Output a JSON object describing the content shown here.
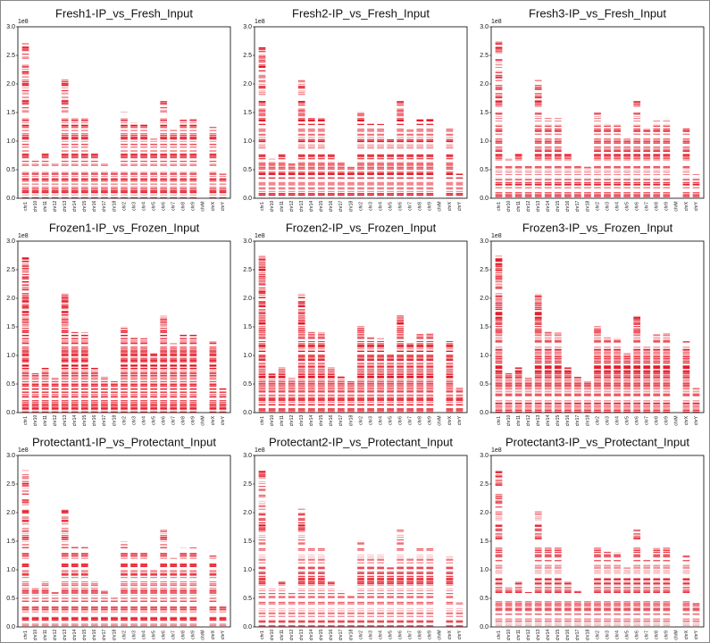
{
  "chart_data": [
    {
      "type": "bar",
      "title": "Fresh1-IP_vs_Fresh_Input",
      "offset_label": "1e8",
      "color": "#e3101e",
      "categories": [
        "chr1",
        "chr10",
        "chr11",
        "chr12",
        "chr13",
        "chr14",
        "chr15",
        "chr16",
        "chr17",
        "chr18",
        "chr2",
        "chr3",
        "chr4",
        "chr5",
        "chr6",
        "chr7",
        "chr8",
        "chr9",
        "chrM",
        "chrX",
        "chrY"
      ],
      "values": [
        2.74,
        0.69,
        0.79,
        0.61,
        2.08,
        1.41,
        1.4,
        0.79,
        0.63,
        0.55,
        1.51,
        1.32,
        1.3,
        1.04,
        1.7,
        1.21,
        1.38,
        1.39,
        0.00017,
        1.25,
        0.43
      ],
      "ylim": [
        0,
        3
      ],
      "yticks": [
        {
          "value": 0,
          "label": "0.0"
        },
        0.5,
        {
          "value": 1,
          "label": "1.0"
        },
        1.5,
        {
          "value": 2,
          "label": "2.0"
        },
        2.5,
        {
          "value": 3,
          "label": "3.0"
        }
      ]
    },
    {
      "type": "bar",
      "title": "Fresh2-IP_vs_Fresh_Input",
      "offset_label": "1e8",
      "color": "#e3101e",
      "categories": [
        "chr1",
        "chr10",
        "chr11",
        "chr12",
        "chr13",
        "chr14",
        "chr15",
        "chr16",
        "chr17",
        "chr18",
        "chr2",
        "chr3",
        "chr4",
        "chr5",
        "chr6",
        "chr7",
        "chr8",
        "chr9",
        "chrM",
        "chrX",
        "chrY"
      ],
      "values": [
        2.74,
        0.69,
        0.79,
        0.61,
        2.08,
        1.41,
        1.4,
        0.79,
        0.63,
        0.55,
        1.51,
        1.32,
        1.3,
        1.04,
        1.7,
        1.21,
        1.38,
        1.39,
        0.00017,
        1.25,
        0.43
      ],
      "ylim": [
        0,
        3
      ],
      "yticks": [
        {
          "value": 0,
          "label": "0.0"
        },
        0.5,
        {
          "value": 1,
          "label": "1.0"
        },
        1.5,
        {
          "value": 2,
          "label": "2.0"
        },
        2.5,
        {
          "value": 3,
          "label": "3.0"
        }
      ]
    },
    {
      "type": "bar",
      "title": "Fresh3-IP_vs_Fresh_Input",
      "offset_label": "1e8",
      "color": "#e3101e",
      "categories": [
        "chr1",
        "chr10",
        "chr11",
        "chr12",
        "chr13",
        "chr14",
        "chr15",
        "chr16",
        "chr17",
        "chr18",
        "chr2",
        "chr3",
        "chr4",
        "chr5",
        "chr6",
        "chr7",
        "chr8",
        "chr9",
        "chrM",
        "chrX",
        "chrY"
      ],
      "values": [
        2.74,
        0.69,
        0.79,
        0.61,
        2.08,
        1.41,
        1.4,
        0.79,
        0.63,
        0.55,
        1.51,
        1.32,
        1.3,
        1.04,
        1.7,
        1.21,
        1.38,
        1.39,
        0.00017,
        1.25,
        0.43
      ],
      "ylim": [
        0,
        3
      ],
      "yticks": [
        {
          "value": 0,
          "label": "0.0"
        },
        0.5,
        {
          "value": 1,
          "label": "1.0"
        },
        1.5,
        {
          "value": 2,
          "label": "2.0"
        },
        2.5,
        {
          "value": 3,
          "label": "3.0"
        }
      ]
    },
    {
      "type": "bar",
      "title": "Frozen1-IP_vs_Frozen_Input",
      "offset_label": "1e8",
      "color": "#e3101e",
      "categories": [
        "chr1",
        "chr10",
        "chr11",
        "chr12",
        "chr13",
        "chr14",
        "chr15",
        "chr16",
        "chr17",
        "chr18",
        "chr2",
        "chr3",
        "chr4",
        "chr5",
        "chr6",
        "chr7",
        "chr8",
        "chr9",
        "chrM",
        "chrX",
        "chrY"
      ],
      "values": [
        2.74,
        0.69,
        0.79,
        0.61,
        2.08,
        1.41,
        1.4,
        0.79,
        0.63,
        0.55,
        1.51,
        1.32,
        1.3,
        1.04,
        1.7,
        1.21,
        1.38,
        1.39,
        0.00017,
        1.25,
        0.43
      ],
      "ylim": [
        0,
        3
      ],
      "yticks": [
        {
          "value": 0,
          "label": "0.0"
        },
        0.5,
        {
          "value": 1,
          "label": "1.0"
        },
        1.5,
        {
          "value": 2,
          "label": "2.0"
        },
        2.5,
        {
          "value": 3,
          "label": "3.0"
        }
      ]
    },
    {
      "type": "bar",
      "title": "Frozen2-IP_vs_Frozen_Input",
      "offset_label": "1e8",
      "color": "#e3101e",
      "categories": [
        "chr1",
        "chr10",
        "chr11",
        "chr12",
        "chr13",
        "chr14",
        "chr15",
        "chr16",
        "chr17",
        "chr18",
        "chr2",
        "chr3",
        "chr4",
        "chr5",
        "chr6",
        "chr7",
        "chr8",
        "chr9",
        "chrM",
        "chrX",
        "chrY"
      ],
      "values": [
        2.74,
        0.69,
        0.79,
        0.61,
        2.08,
        1.41,
        1.4,
        0.79,
        0.63,
        0.55,
        1.51,
        1.32,
        1.3,
        1.04,
        1.7,
        1.21,
        1.38,
        1.39,
        0.00017,
        1.25,
        0.43
      ],
      "ylim": [
        0,
        3
      ],
      "yticks": [
        {
          "value": 0,
          "label": "0.0"
        },
        0.5,
        {
          "value": 1,
          "label": "1.0"
        },
        1.5,
        {
          "value": 2,
          "label": "2.0"
        },
        2.5,
        {
          "value": 3,
          "label": "3.0"
        }
      ]
    },
    {
      "type": "bar",
      "title": "Frozen3-IP_vs_Frozen_Input",
      "offset_label": "1e8",
      "color": "#e3101e",
      "categories": [
        "chr1",
        "chr10",
        "chr11",
        "chr12",
        "chr13",
        "chr14",
        "chr15",
        "chr16",
        "chr17",
        "chr18",
        "chr2",
        "chr3",
        "chr4",
        "chr5",
        "chr6",
        "chr7",
        "chr8",
        "chr9",
        "chrM",
        "chrX",
        "chrY"
      ],
      "values": [
        2.74,
        0.69,
        0.79,
        0.61,
        2.08,
        1.41,
        1.4,
        0.79,
        0.63,
        0.55,
        1.51,
        1.32,
        1.3,
        1.04,
        1.7,
        1.21,
        1.38,
        1.39,
        0.00017,
        1.25,
        0.43
      ],
      "ylim": [
        0,
        3
      ],
      "yticks": [
        {
          "value": 0,
          "label": "0.0"
        },
        0.5,
        {
          "value": 1,
          "label": "1.0"
        },
        1.5,
        {
          "value": 2,
          "label": "2.0"
        },
        2.5,
        {
          "value": 3,
          "label": "3.0"
        }
      ]
    },
    {
      "type": "bar",
      "title": "Protectant1-IP_vs_Protectant_Input",
      "offset_label": "1e8",
      "color": "#e3101e",
      "categories": [
        "chr1",
        "chr10",
        "chr11",
        "chr12",
        "chr13",
        "chr14",
        "chr15",
        "chr16",
        "chr17",
        "chr18",
        "chr2",
        "chr3",
        "chr4",
        "chr5",
        "chr6",
        "chr7",
        "chr8",
        "chr9",
        "chrM",
        "chrX",
        "chrY"
      ],
      "values": [
        2.74,
        0.69,
        0.79,
        0.61,
        2.08,
        1.41,
        1.4,
        0.79,
        0.63,
        0.55,
        1.51,
        1.32,
        1.3,
        1.04,
        1.7,
        1.21,
        1.38,
        1.39,
        0.00017,
        1.25,
        0.43
      ],
      "ylim": [
        0,
        3
      ],
      "yticks": [
        {
          "value": 0,
          "label": "0.0"
        },
        0.5,
        {
          "value": 1,
          "label": "1.0"
        },
        1.5,
        {
          "value": 2,
          "label": "2.0"
        },
        2.5,
        {
          "value": 3,
          "label": "3.0"
        }
      ]
    },
    {
      "type": "bar",
      "title": "Protectant2-IP_vs_Protectant_Input",
      "offset_label": "1e8",
      "color": "#e3101e",
      "categories": [
        "chr1",
        "chr10",
        "chr11",
        "chr12",
        "chr13",
        "chr14",
        "chr15",
        "chr16",
        "chr17",
        "chr18",
        "chr2",
        "chr3",
        "chr4",
        "chr5",
        "chr6",
        "chr7",
        "chr8",
        "chr9",
        "chrM",
        "chrX",
        "chrY"
      ],
      "values": [
        2.74,
        0.69,
        0.79,
        0.61,
        2.08,
        1.41,
        1.4,
        0.79,
        0.63,
        0.55,
        1.51,
        1.32,
        1.3,
        1.04,
        1.7,
        1.21,
        1.38,
        1.39,
        0.00017,
        1.25,
        0.43
      ],
      "ylim": [
        0,
        3
      ],
      "yticks": [
        {
          "value": 0,
          "label": "0.0"
        },
        0.5,
        {
          "value": 1,
          "label": "1.0"
        },
        1.5,
        {
          "value": 2,
          "label": "2.0"
        },
        2.5,
        {
          "value": 3,
          "label": "3.0"
        }
      ]
    },
    {
      "type": "bar",
      "title": "Protectant3-IP_vs_Protectant_Input",
      "offset_label": "1e8",
      "color": "#e3101e",
      "categories": [
        "chr1",
        "chr10",
        "chr11",
        "chr12",
        "chr13",
        "chr14",
        "chr15",
        "chr16",
        "chr17",
        "chr18",
        "chr2",
        "chr3",
        "chr4",
        "chr5",
        "chr6",
        "chr7",
        "chr8",
        "chr9",
        "chrM",
        "chrX",
        "chrY"
      ],
      "values": [
        2.74,
        0.69,
        0.79,
        0.61,
        2.08,
        1.41,
        1.4,
        0.79,
        0.63,
        0.55,
        1.51,
        1.32,
        1.3,
        1.04,
        1.7,
        1.21,
        1.38,
        1.39,
        0.00017,
        1.25,
        0.43
      ],
      "ylim": [
        0,
        3
      ],
      "yticks": [
        {
          "value": 0,
          "label": "0.0"
        },
        0.5,
        {
          "value": 1,
          "label": "1.0"
        },
        1.5,
        {
          "value": 2,
          "label": "2.0"
        },
        2.5,
        {
          "value": 3,
          "label": "3.0"
        }
      ]
    }
  ]
}
